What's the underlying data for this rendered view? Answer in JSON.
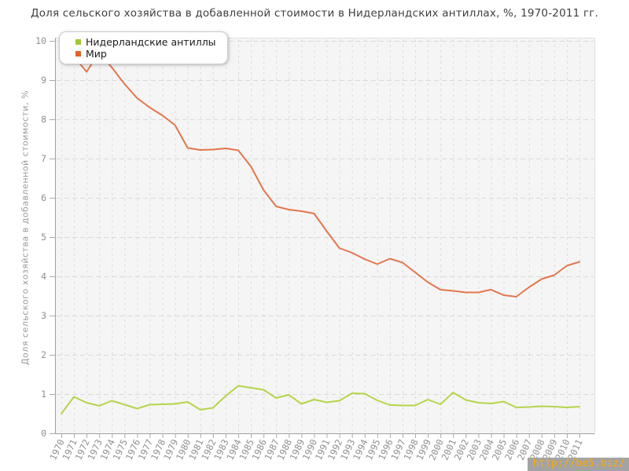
{
  "title": "Доля сельского хозяйства в добавленной стоимости в Нидерландских антиллах, %, 1970-2011 гг.",
  "watermark": "http://be5.biz/",
  "chart_data": {
    "type": "line",
    "title": "Доля сельского хозяйства в добавленной стоимости в Нидерландских антиллах, %, 1970-2011 гг.",
    "xlabel": "",
    "ylabel": "Доля сельского хозяйства в добавленной стоимости, %",
    "ylim": [
      0,
      10
    ],
    "y_ticks": [
      0,
      1,
      2,
      3,
      4,
      5,
      6,
      7,
      8,
      9,
      10
    ],
    "grid": true,
    "grid_style": "dashed",
    "legend_position": "top-left",
    "plot_background": "#f5f5f5",
    "x": [
      1970,
      1971,
      1972,
      1973,
      1974,
      1975,
      1976,
      1977,
      1978,
      1979,
      1980,
      1981,
      1982,
      1983,
      1984,
      1985,
      1986,
      1987,
      1988,
      1989,
      1990,
      1991,
      1992,
      1993,
      1994,
      1995,
      1996,
      1997,
      1998,
      1999,
      2000,
      2001,
      2002,
      2003,
      2004,
      2005,
      2006,
      2007,
      2008,
      2009,
      2010,
      2011
    ],
    "series": [
      {
        "name": "Нидерландские антиллы",
        "color": "#b5d44a",
        "swatch_color": "#a2c739",
        "values": [
          0.5,
          0.93,
          0.78,
          0.7,
          0.83,
          0.73,
          0.63,
          0.73,
          0.74,
          0.75,
          0.8,
          0.6,
          0.65,
          0.95,
          1.21,
          1.16,
          1.11,
          0.9,
          0.98,
          0.75,
          0.86,
          0.79,
          0.83,
          1.02,
          1.01,
          0.84,
          0.72,
          0.71,
          0.71,
          0.86,
          0.74,
          1.04,
          0.85,
          0.78,
          0.76,
          0.81,
          0.66,
          0.67,
          0.69,
          0.68,
          0.66,
          0.68
        ]
      },
      {
        "name": "Мир",
        "color": "#e3764b",
        "swatch_color": "#df6327",
        "values": [
          10.0,
          9.6,
          9.21,
          9.7,
          9.32,
          8.9,
          8.54,
          8.3,
          8.1,
          7.85,
          7.27,
          7.22,
          7.23,
          7.26,
          7.21,
          6.8,
          6.2,
          5.78,
          5.7,
          5.66,
          5.6,
          5.15,
          4.72,
          4.6,
          4.44,
          4.31,
          4.45,
          4.35,
          4.1,
          3.85,
          3.66,
          3.63,
          3.59,
          3.59,
          3.66,
          3.52,
          3.48,
          3.72,
          3.93,
          4.03,
          4.27,
          4.37
        ]
      }
    ]
  }
}
